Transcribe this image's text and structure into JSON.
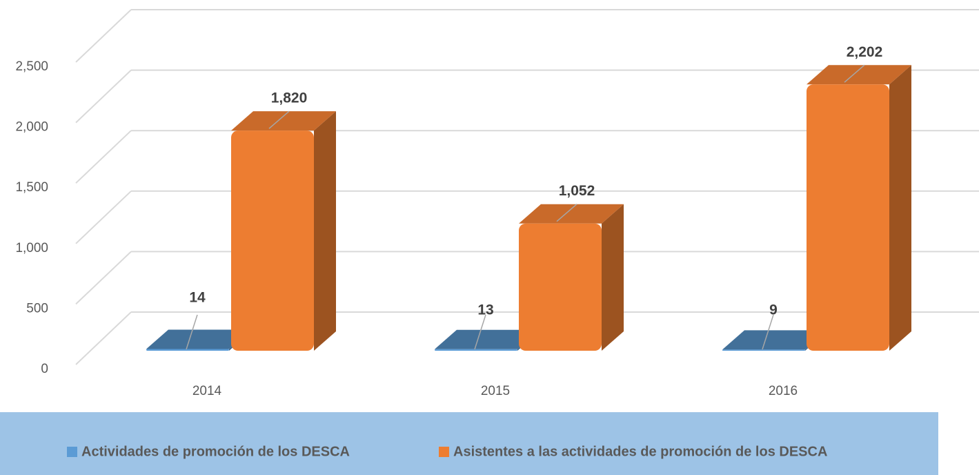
{
  "chart_data": {
    "type": "bar3d",
    "categories": [
      "2014",
      "2015",
      "2016"
    ],
    "series": [
      {
        "name": "Actividades de promoción de los DESCA",
        "color": "#5b9bd5",
        "values": [
          14,
          13,
          9
        ]
      },
      {
        "name": "Asistentes a las actividades de promoción de los DESCA",
        "color": "#ed7d31",
        "values": [
          1820,
          1052,
          2202
        ],
        "value_labels": [
          "1,820",
          "1,052",
          "2,202"
        ]
      }
    ],
    "ylim": [
      0,
      2500
    ],
    "yticks": [
      0,
      500,
      {
        "value": 1000,
        "label": "1,000"
      },
      {
        "value": 1500,
        "label": "1,500"
      },
      {
        "value": 2000,
        "label": "2,000"
      },
      {
        "value": 2500,
        "label": "2,500"
      }
    ],
    "grid": true,
    "legend": "bottom"
  }
}
